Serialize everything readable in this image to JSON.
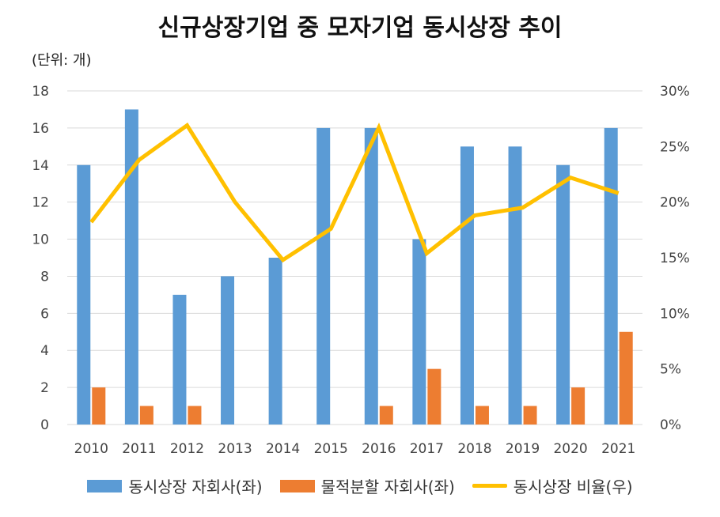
{
  "chart_data": {
    "type": "bar",
    "title": "신규상장기업 중 모자기업 동시상장 추이",
    "unit_label": "(단위: 개)",
    "categories": [
      "2010",
      "2011",
      "2012",
      "2013",
      "2014",
      "2015",
      "2016",
      "2017",
      "2018",
      "2019",
      "2020",
      "2021"
    ],
    "series": [
      {
        "name": "동시상장 자회사(좌)",
        "type": "bar",
        "axis": "left",
        "color": "#5B9BD5",
        "values": [
          14,
          17,
          7,
          8,
          9,
          16,
          16,
          10,
          15,
          15,
          14,
          16
        ]
      },
      {
        "name": "물적분할 자회사(좌)",
        "type": "bar",
        "axis": "left",
        "color": "#ED7D31",
        "values": [
          2,
          1,
          1,
          0,
          0,
          0,
          1,
          3,
          1,
          1,
          2,
          5
        ]
      },
      {
        "name": "동시상장 비율(우)",
        "type": "line",
        "axis": "right",
        "color": "#FFC000",
        "values": [
          18.2,
          23.8,
          26.9,
          20.0,
          14.8,
          17.6,
          26.7,
          15.4,
          18.8,
          19.5,
          22.2,
          20.8
        ]
      }
    ],
    "y_left": {
      "min": 0,
      "max": 18,
      "ticks": [
        "0",
        "2",
        "4",
        "6",
        "8",
        "10",
        "12",
        "14",
        "16",
        "18"
      ]
    },
    "y_right": {
      "min": 0,
      "max": 30,
      "ticks": [
        "0%",
        "5%",
        "10%",
        "15%",
        "20%",
        "25%",
        "30%"
      ]
    },
    "grid": true,
    "legend": "bottom"
  }
}
